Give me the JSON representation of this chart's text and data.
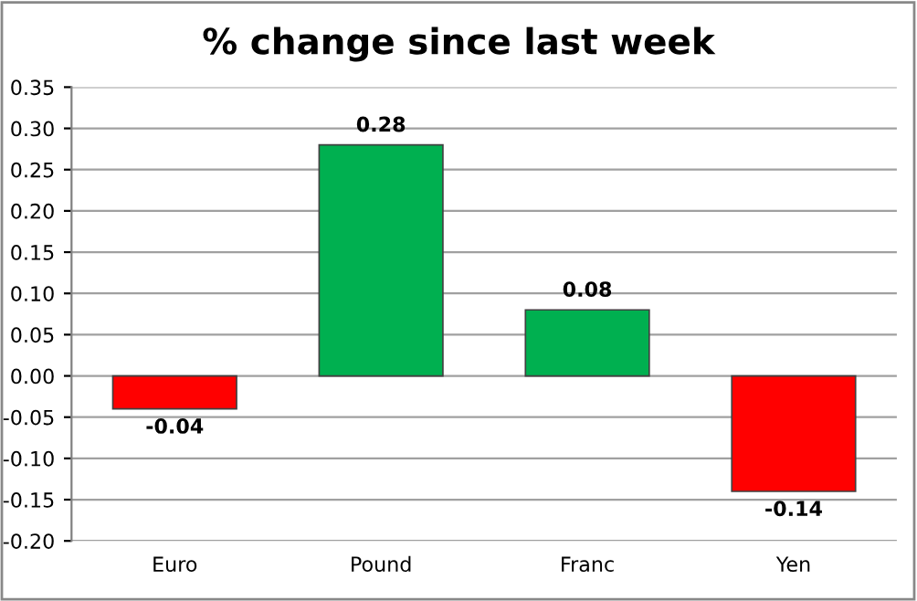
{
  "chart_data": {
    "type": "bar",
    "title": "% change since last week",
    "categories": [
      "Euro",
      "Pound",
      "Franc",
      "Yen"
    ],
    "values": [
      -0.04,
      0.28,
      0.08,
      -0.14
    ],
    "colors": [
      "#ff0000",
      "#00b050",
      "#00b050",
      "#ff0000"
    ],
    "ylim": [
      -0.2,
      0.35
    ],
    "yticks": [
      {
        "value": -0.2,
        "label": "-0.20"
      },
      {
        "value": -0.15,
        "label": "-0.15"
      },
      {
        "value": -0.1,
        "label": "-0.10"
      },
      {
        "value": -0.05,
        "label": "-0.05"
      },
      {
        "value": 0,
        "label": "0.00"
      },
      {
        "value": 0.05,
        "label": "0.05"
      },
      {
        "value": 0.1,
        "label": "0.10"
      },
      {
        "value": 0.15,
        "label": "0.15"
      },
      {
        "value": 0.2,
        "label": "0.20"
      },
      {
        "value": 0.25,
        "label": "0.25"
      },
      {
        "value": 0.3,
        "label": "0.30"
      },
      {
        "value": 0.35,
        "label": "0.35"
      }
    ],
    "grid": "y",
    "data_labels": true
  }
}
